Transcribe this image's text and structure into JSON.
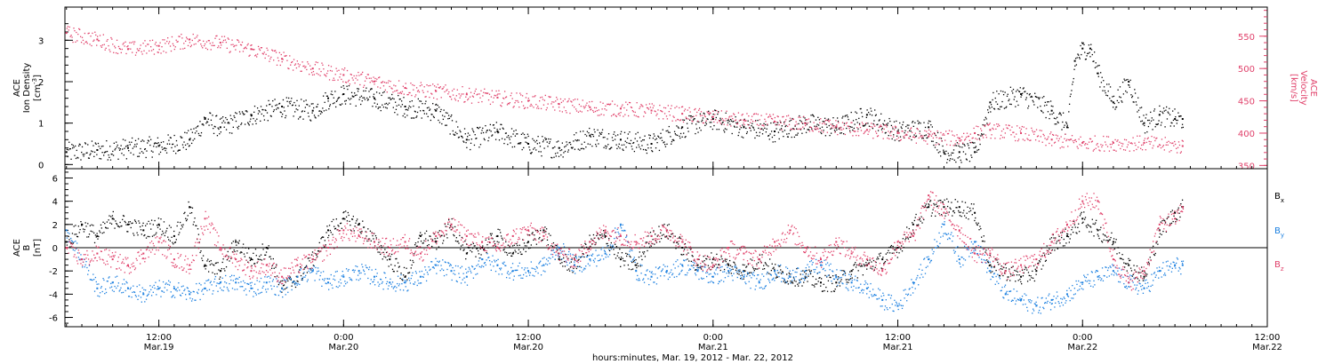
{
  "colors": {
    "black": "#000000",
    "pink": "#e0406a",
    "blue": "#1a7fe0"
  },
  "xaxis": {
    "label": "hours:minutes, Mar. 19, 2012 - Mar. 22, 2012",
    "ticks": [
      {
        "t": 12,
        "time": "12:00",
        "date": "Mar.19"
      },
      {
        "t": 24,
        "time": "0:00",
        "date": "Mar.20"
      },
      {
        "t": 36,
        "time": "12:00",
        "date": "Mar.20"
      },
      {
        "t": 48,
        "time": "0:00",
        "date": "Mar.21"
      },
      {
        "t": 60,
        "time": "12:00",
        "date": "Mar.21"
      },
      {
        "t": 72,
        "time": "0:00",
        "date": "Mar.22"
      },
      {
        "t": 84,
        "time": "12:00",
        "date": "Mar.22"
      }
    ]
  },
  "chart_data": [
    {
      "type": "scatter",
      "panel": "top",
      "xlim_hours_since_mar19_0000": [
        5.9,
        84
      ],
      "left_axis": {
        "label_line1": "ACE",
        "label_line2": "Ion Density",
        "unit": "[cm",
        "unit_sup": "-3",
        "unit_end": "]",
        "ylim": [
          -0.1,
          3.8
        ],
        "ticks": [
          "0",
          "1",
          "2",
          "3"
        ]
      },
      "right_axis": {
        "label_line1": "ACE",
        "label_line2": "Velocity",
        "unit": "[km/s]",
        "ylim": [
          345,
          595
        ],
        "ticks": [
          "350",
          "400",
          "450",
          "500",
          "550"
        ]
      },
      "series": [
        {
          "name": "",
          "color": "black",
          "axis": "left",
          "x_hours": [
            6,
            8,
            10,
            12,
            14,
            15,
            16,
            18,
            20,
            22,
            23,
            24,
            26,
            28,
            30,
            32,
            34,
            36,
            38,
            40,
            42,
            44,
            46,
            48,
            50,
            52,
            54,
            56,
            58,
            60,
            62,
            63,
            64,
            65,
            66,
            68,
            70,
            71,
            71.5,
            72,
            72.5,
            73,
            74,
            75,
            76,
            77,
            78,
            78.5
          ],
          "values": [
            0.3,
            0.35,
            0.4,
            0.45,
            0.6,
            1.1,
            0.9,
            1.2,
            1.4,
            1.3,
            1.6,
            1.7,
            1.6,
            1.4,
            1.3,
            0.6,
            0.8,
            0.5,
            0.4,
            0.7,
            0.6,
            0.5,
            0.9,
            1.1,
            0.9,
            0.8,
            1.0,
            0.9,
            1.2,
            0.8,
            0.9,
            0.3,
            0.3,
            0.3,
            1.5,
            1.7,
            1.3,
            0.9,
            2.5,
            2.8,
            2.8,
            2.2,
            1.5,
            2.0,
            1.0,
            1.2,
            1.1,
            1.1
          ]
        },
        {
          "name": "",
          "color": "pink",
          "axis": "right",
          "x_hours": [
            6,
            8,
            10,
            12,
            14,
            16,
            18,
            20,
            22,
            24,
            26,
            28,
            30,
            32,
            34,
            36,
            38,
            40,
            42,
            44,
            46,
            48,
            50,
            52,
            54,
            56,
            58,
            60,
            62,
            64,
            65,
            66,
            68,
            70,
            72,
            74,
            76,
            78.5
          ],
          "values": [
            555,
            545,
            530,
            535,
            545,
            540,
            530,
            515,
            500,
            490,
            480,
            470,
            465,
            460,
            455,
            450,
            445,
            440,
            438,
            435,
            430,
            425,
            420,
            418,
            415,
            410,
            405,
            400,
            395,
            392,
            400,
            405,
            400,
            390,
            385,
            385,
            385,
            380
          ]
        }
      ]
    },
    {
      "type": "scatter",
      "panel": "bottom",
      "xlim_hours_since_mar19_0000": [
        5.9,
        84
      ],
      "left_axis": {
        "label_line1": "ACE",
        "label_line2": "B",
        "unit": "[nT]",
        "ylim": [
          -6.8,
          6.8
        ],
        "ticks": [
          "-6",
          "-4",
          "-2",
          "0",
          "2",
          "4",
          "6"
        ]
      },
      "series": [
        {
          "name": "B",
          "name_sub": "x",
          "color": "black",
          "x_hours": [
            6,
            7,
            8,
            9,
            10,
            11,
            12,
            13,
            14,
            15,
            16,
            17,
            18,
            19,
            20,
            21,
            22,
            23,
            24,
            25,
            26,
            27,
            28,
            29,
            30,
            31,
            32,
            33,
            34,
            35,
            36,
            37,
            38,
            39,
            40,
            41,
            42,
            43,
            44,
            45,
            46,
            47,
            48,
            49,
            50,
            51,
            52,
            53,
            54,
            55,
            56,
            57,
            58,
            59,
            60,
            61,
            62,
            63,
            64,
            65,
            66,
            67,
            68,
            69,
            70,
            71,
            72,
            73,
            74,
            75,
            76,
            77,
            78,
            78.5
          ],
          "values": [
            0.5,
            2.0,
            1.0,
            2.5,
            2.0,
            1.5,
            2.0,
            1.0,
            3.5,
            -1.5,
            -2.0,
            0.5,
            -1.0,
            0,
            -3.5,
            -2.5,
            -1.0,
            1.5,
            2.5,
            2.0,
            0.5,
            -1.0,
            -2.5,
            1.0,
            0.5,
            2.0,
            -0.5,
            0,
            1.0,
            -0.5,
            0.5,
            1.5,
            -1.0,
            -1.5,
            0.5,
            1.0,
            -1.0,
            -1.5,
            1.0,
            1.5,
            0,
            -1.5,
            -1.0,
            -1.5,
            -2.0,
            -1.0,
            -2.0,
            -2.5,
            -2.5,
            -3.0,
            -3.0,
            -2.0,
            -1.5,
            -1.0,
            0,
            2.0,
            3.5,
            3.5,
            3.5,
            3.0,
            -1.5,
            -2.0,
            -2.5,
            -2.0,
            0.5,
            1.0,
            2.5,
            1.5,
            0.5,
            -1.5,
            -2.5,
            1.5,
            3.0,
            3.5
          ]
        },
        {
          "name": "B",
          "name_sub": "y",
          "color": "blue",
          "x_hours": [
            6,
            7,
            8,
            9,
            10,
            11,
            12,
            13,
            14,
            15,
            16,
            17,
            18,
            19,
            20,
            21,
            22,
            23,
            24,
            25,
            26,
            27,
            28,
            29,
            30,
            31,
            32,
            33,
            34,
            35,
            36,
            37,
            38,
            39,
            40,
            41,
            42,
            43,
            44,
            45,
            46,
            47,
            48,
            49,
            50,
            51,
            52,
            53,
            54,
            55,
            56,
            57,
            58,
            59,
            60,
            61,
            62,
            63,
            64,
            65,
            66,
            67,
            68,
            69,
            70,
            71,
            72,
            73,
            74,
            75,
            76,
            77,
            78,
            78.5
          ],
          "values": [
            1.5,
            -1.0,
            -3.5,
            -3.0,
            -3.5,
            -4.0,
            -3.5,
            -3.5,
            -4.0,
            -3.5,
            -3.0,
            -3.0,
            -3.5,
            -3.0,
            -3.5,
            -2.5,
            -2.0,
            -3.0,
            -2.5,
            -2.0,
            -2.5,
            -3.0,
            -3.0,
            -2.5,
            -1.5,
            -2.0,
            -2.5,
            -1.0,
            -1.5,
            -2.0,
            -2.0,
            -1.5,
            0,
            -1.5,
            -1.0,
            -0.5,
            2.0,
            -2.0,
            -2.5,
            -2.0,
            -1.5,
            -2.0,
            -2.5,
            -2.0,
            -2.5,
            -3.0,
            -2.0,
            -2.5,
            -2.0,
            -1.5,
            -2.5,
            -3.0,
            -3.5,
            -4.5,
            -5.0,
            -3.0,
            -1.0,
            2.0,
            -1.0,
            0.5,
            -2.0,
            -4.0,
            -4.5,
            -5.0,
            -4.5,
            -4.0,
            -3.0,
            -2.5,
            -2.0,
            -3.0,
            -3.5,
            -2.0,
            -1.5,
            -1.5
          ]
        },
        {
          "name": "B",
          "name_sub": "z",
          "color": "pink",
          "x_hours": [
            6,
            7,
            8,
            9,
            10,
            11,
            12,
            13,
            14,
            15,
            16,
            17,
            18,
            19,
            20,
            21,
            22,
            23,
            24,
            25,
            26,
            27,
            28,
            29,
            30,
            31,
            32,
            33,
            34,
            35,
            36,
            37,
            38,
            39,
            40,
            41,
            42,
            43,
            44,
            45,
            46,
            47,
            48,
            49,
            50,
            51,
            52,
            53,
            54,
            55,
            56,
            57,
            58,
            59,
            60,
            61,
            62,
            63,
            64,
            65,
            66,
            67,
            68,
            69,
            70,
            71,
            72,
            73,
            74,
            75,
            76,
            77,
            78,
            78.5
          ],
          "values": [
            0,
            -1.0,
            -0.5,
            -1.0,
            -1.5,
            -0.5,
            0.5,
            -1.0,
            -1.5,
            2.5,
            0,
            -1.0,
            -2.0,
            -1.5,
            -2.5,
            -1.5,
            -1.0,
            0,
            1.5,
            1.0,
            0.5,
            0,
            0.5,
            -0.5,
            1.0,
            2.0,
            1.0,
            0.5,
            0,
            1.0,
            1.5,
            1.0,
            -0.5,
            -1.0,
            0.5,
            1.5,
            1.0,
            0.5,
            1.0,
            1.5,
            0.5,
            -1.0,
            -1.5,
            0,
            -0.5,
            -1.0,
            0.5,
            1.5,
            0,
            -1.0,
            0.5,
            -0.5,
            -1.0,
            -2.0,
            0.5,
            1.0,
            4.5,
            3.0,
            1.5,
            -0.5,
            -0.5,
            -2.0,
            -1.5,
            -1.0,
            0.5,
            2.0,
            4.0,
            4.0,
            -1.0,
            -3.0,
            -2.0,
            2.0,
            2.5,
            3.5
          ]
        }
      ]
    }
  ]
}
